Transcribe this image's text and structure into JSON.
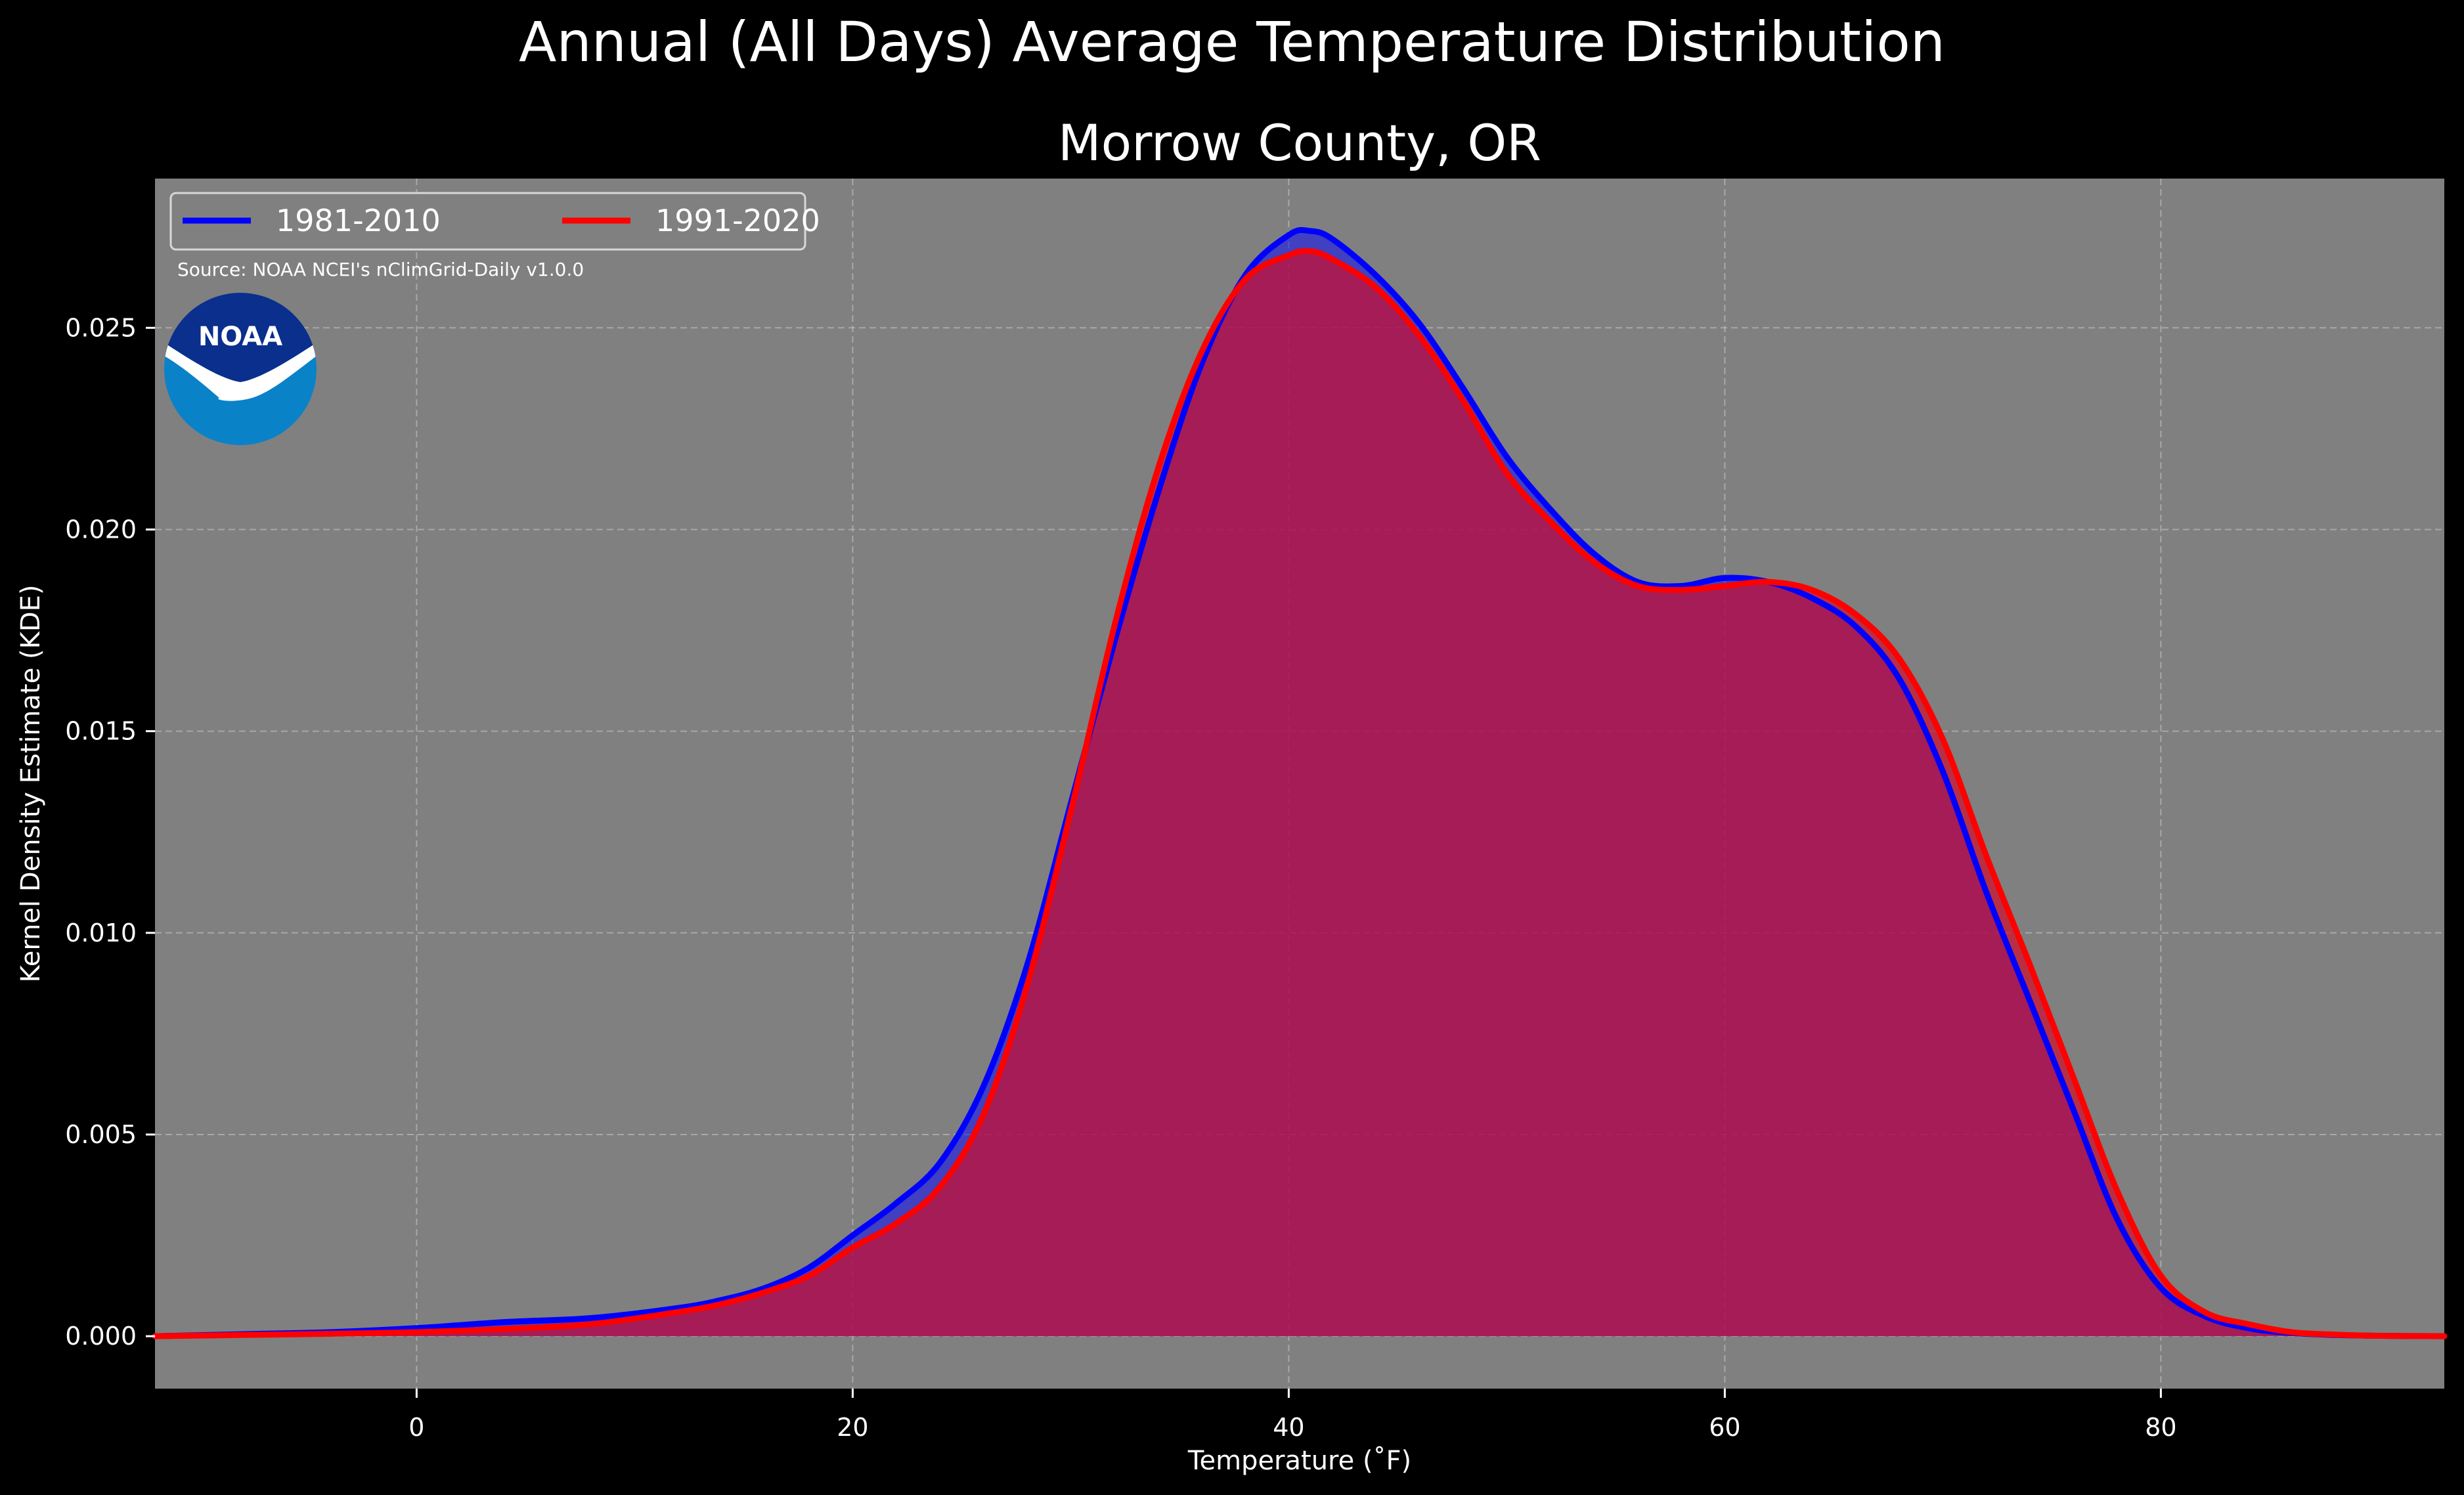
{
  "chart_data": {
    "type": "area",
    "title": "Annual (All Days) Average Temperature Distribution",
    "subtitle": "Morrow County, OR",
    "xlabel": "Temperature ($^\\circ$F)",
    "xlabel_display": "Temperature (˚F)",
    "ylabel": "Kernel Density Estimate (KDE)",
    "xlim": [
      -12,
      93
    ],
    "ylim": [
      -0.0013,
      0.0287
    ],
    "xticks": [
      0,
      20,
      40,
      60,
      80
    ],
    "xtick_labels": [
      "0",
      "20",
      "40",
      "60",
      "80"
    ],
    "yticks": [
      0,
      0.005,
      0.01,
      0.015,
      0.02,
      0.025
    ],
    "ytick_labels": [
      "0.000",
      "0.005",
      "0.010",
      "0.015",
      "0.020",
      "0.025"
    ],
    "grid": true,
    "legend_position": "top-left",
    "source_note": "Source: NOAA NCEI's nClimGrid-Daily v1.0.0",
    "logo_text": "NOAA",
    "colors": {
      "figure_background": "#000000",
      "axes_background": "#808080",
      "text": "#ffffff",
      "grid": "#c8c8c8",
      "series_1981_2010": "#0000ff",
      "series_1991_2020": "#ff0000",
      "fill_blend": "#9e1e5a",
      "noaa_dark": "#0a2f8c",
      "noaa_light": "#0a82c8"
    },
    "series": [
      {
        "name": "1981-2010",
        "color": "#0000ff",
        "x": [
          -12,
          -8,
          -4,
          0,
          4,
          8,
          12,
          14,
          16,
          18,
          20,
          22,
          24,
          26,
          28,
          30,
          32,
          34,
          36,
          38,
          40,
          41,
          42,
          44,
          46,
          48,
          50,
          52,
          54,
          56,
          58,
          60,
          62,
          64,
          66,
          68,
          70,
          72,
          74,
          76,
          78,
          80,
          82,
          84,
          86,
          88,
          90,
          93
        ],
        "y": [
          0,
          5e-05,
          0.0001,
          0.0002,
          0.00035,
          0.00045,
          0.0007,
          0.0009,
          0.0012,
          0.0017,
          0.0025,
          0.0033,
          0.0043,
          0.0062,
          0.0092,
          0.0132,
          0.0172,
          0.0209,
          0.0241,
          0.0263,
          0.0273,
          0.0274,
          0.0272,
          0.0263,
          0.0251,
          0.0235,
          0.0218,
          0.0205,
          0.0194,
          0.0187,
          0.0186,
          0.0188,
          0.0187,
          0.0183,
          0.0176,
          0.0163,
          0.014,
          0.011,
          0.0083,
          0.0056,
          0.0029,
          0.0012,
          0.0005,
          0.0002,
          8e-05,
          3e-05,
          1e-05,
          0
        ]
      },
      {
        "name": "1991-2020",
        "color": "#ff0000",
        "x": [
          -12,
          -8,
          -4,
          0,
          4,
          8,
          12,
          14,
          16,
          18,
          20,
          22,
          24,
          26,
          28,
          30,
          32,
          34,
          36,
          38,
          40,
          41,
          42,
          44,
          46,
          48,
          50,
          52,
          54,
          56,
          58,
          60,
          62,
          64,
          66,
          68,
          70,
          72,
          74,
          76,
          78,
          80,
          82,
          84,
          86,
          88,
          90,
          93
        ],
        "y": [
          0,
          3e-05,
          6e-05,
          0.0001,
          0.00018,
          0.0003,
          0.0006,
          0.0008,
          0.0011,
          0.0015,
          0.0022,
          0.0028,
          0.0037,
          0.0055,
          0.0087,
          0.013,
          0.0176,
          0.0215,
          0.0244,
          0.0262,
          0.0268,
          0.0269,
          0.0267,
          0.026,
          0.0248,
          0.0232,
          0.0214,
          0.0202,
          0.0192,
          0.0186,
          0.0185,
          0.0186,
          0.0187,
          0.0185,
          0.0179,
          0.0168,
          0.0148,
          0.0119,
          0.0092,
          0.0064,
          0.0036,
          0.0015,
          0.0006,
          0.0003,
          0.0001,
          4e-05,
          1e-05,
          0
        ]
      }
    ]
  }
}
